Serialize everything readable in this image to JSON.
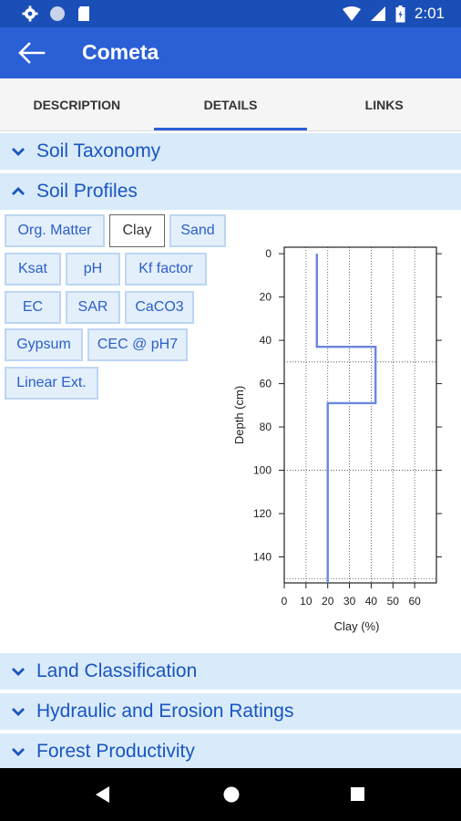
{
  "status_bar": {
    "time": "2:01",
    "icons": [
      "gear-icon",
      "circle-icon",
      "sd-card-icon",
      "wifi-icon",
      "signal-icon",
      "battery-icon"
    ]
  },
  "app_bar": {
    "title": "Cometa",
    "back_icon": "arrow-back-icon"
  },
  "tabs": [
    {
      "label": "DESCRIPTION",
      "active": false
    },
    {
      "label": "DETAILS",
      "active": true
    },
    {
      "label": "LINKS",
      "active": false
    }
  ],
  "sections": {
    "soil_taxonomy": {
      "label": "Soil Taxonomy",
      "expanded": false
    },
    "soil_profiles": {
      "label": "Soil Profiles",
      "expanded": true
    },
    "land_classification": {
      "label": "Land Classification",
      "expanded": false
    },
    "hydraulic_erosion": {
      "label": "Hydraulic and Erosion Ratings",
      "expanded": false
    },
    "forest_productivity": {
      "label": "Forest Productivity",
      "expanded": false
    }
  },
  "property_buttons": [
    {
      "label": "Org. Matter",
      "selected": false
    },
    {
      "label": "Clay",
      "selected": true
    },
    {
      "label": "Sand",
      "selected": false
    },
    {
      "label": "Ksat",
      "selected": false
    },
    {
      "label": "pH",
      "selected": false
    },
    {
      "label": "Kf factor",
      "selected": false
    },
    {
      "label": "EC",
      "selected": false
    },
    {
      "label": "SAR",
      "selected": false
    },
    {
      "label": "CaCO3",
      "selected": false
    },
    {
      "label": "Gypsum",
      "selected": false
    },
    {
      "label": "CEC @ pH7",
      "selected": false
    },
    {
      "label": "Linear Ext.",
      "selected": false
    }
  ],
  "chart_data": {
    "type": "line",
    "xlabel": "Clay (%)",
    "ylabel": "Depth (cm)",
    "xlim": [
      0,
      70
    ],
    "ylim": [
      152,
      -3
    ],
    "x_ticks": [
      0,
      10,
      20,
      30,
      40,
      50,
      60
    ],
    "y_ticks": [
      0,
      20,
      40,
      60,
      80,
      100,
      120,
      140
    ],
    "horizon_boundaries": [
      50,
      100,
      150
    ],
    "series": [
      {
        "color": "#6a86e0",
        "points": [
          [
            15,
            0
          ],
          [
            15,
            43
          ],
          [
            42,
            43
          ],
          [
            42,
            69
          ],
          [
            20,
            69
          ],
          [
            20,
            152
          ]
        ]
      }
    ]
  },
  "nav_bar": {
    "icons": [
      "back-triangle-icon",
      "home-circle-icon",
      "recent-square-icon"
    ]
  }
}
